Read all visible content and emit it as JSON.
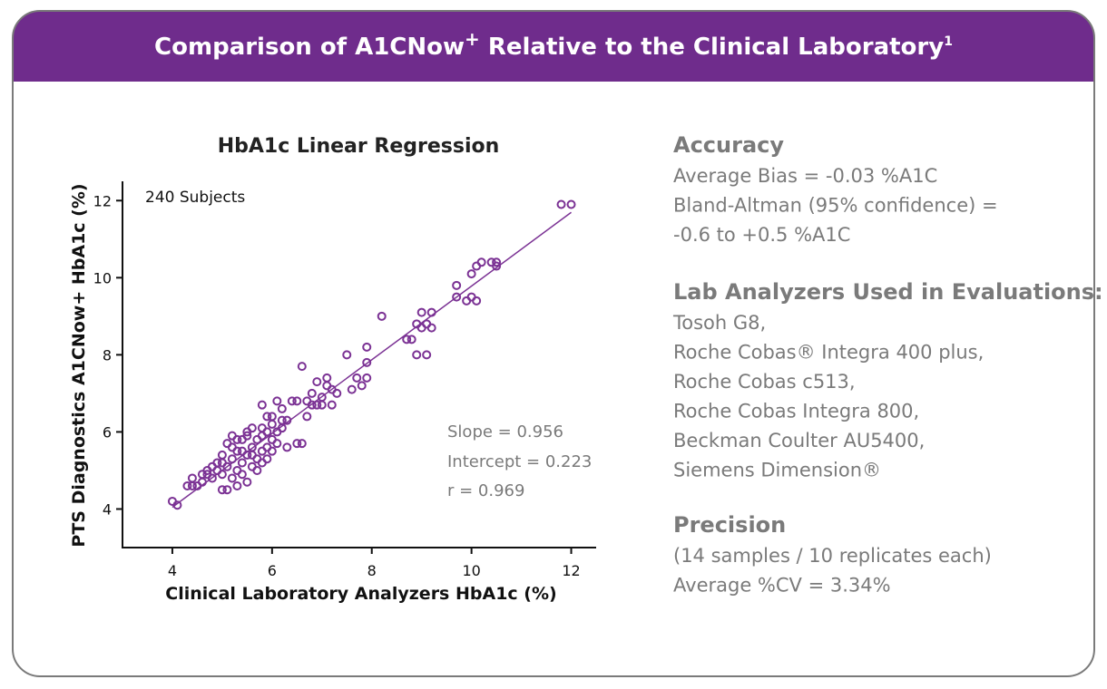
{
  "header": {
    "title": [
      "Comparison of A1CNow",
      "+",
      " Relative to the Clinical Laboratory",
      "1"
    ]
  },
  "chart_data": {
    "type": "scatter",
    "title": "HbA1c Linear Regression",
    "x_label": "Clinical Laboratory Analyzers HbA1c (%)",
    "y_label": "PTS Diagnostics A1CNow+ HbA1c (%)",
    "annotations": [
      "240 Subjects",
      "Slope = 0.956",
      "Intercept = 0.223",
      "r = 0.969"
    ],
    "regression": {
      "slope": 0.956,
      "intercept": 0.223
    },
    "color": "#7b3294",
    "xlim": [
      3,
      12.5
    ],
    "ylim": [
      3,
      12.5
    ],
    "xticks": [
      4,
      6,
      8,
      10,
      12
    ],
    "yticks": [
      4,
      6,
      8,
      10,
      12
    ],
    "grid": false,
    "x": [
      4.0,
      4.1,
      4.3,
      4.4,
      4.4,
      4.5,
      4.6,
      4.7,
      4.7,
      4.8,
      4.8,
      4.9,
      4.9,
      5.0,
      5.0,
      5.0,
      5.1,
      5.1,
      5.1,
      5.2,
      5.2,
      5.2,
      5.3,
      5.3,
      5.3,
      5.4,
      5.4,
      5.4,
      5.5,
      5.5,
      5.5,
      5.6,
      5.6,
      5.6,
      5.7,
      5.7,
      5.7,
      5.8,
      5.8,
      5.8,
      5.9,
      5.9,
      5.9,
      6.0,
      6.0,
      6.0,
      6.1,
      6.1,
      6.1,
      6.2,
      6.2,
      5.8,
      5.9,
      6.3,
      6.3,
      6.4,
      6.5,
      6.6,
      6.5,
      6.6,
      6.7,
      6.7,
      6.8,
      6.8,
      6.9,
      6.9,
      7.0,
      7.0,
      7.1,
      7.1,
      7.2,
      7.2,
      7.3,
      7.5,
      7.6,
      7.7,
      7.8,
      7.9,
      7.9,
      7.9,
      8.2,
      8.7,
      8.8,
      8.9,
      8.9,
      9.0,
      9.0,
      9.1,
      9.1,
      9.2,
      9.2,
      9.7,
      9.7,
      9.9,
      10.0,
      10.0,
      10.1,
      10.1,
      10.2,
      10.4,
      10.5,
      10.5,
      11.8,
      12.0,
      5.0,
      5.2,
      5.4,
      5.6,
      5.8,
      6.0,
      6.2,
      5.5,
      4.6,
      5.3
    ],
    "y": [
      4.2,
      4.1,
      4.6,
      4.8,
      4.6,
      4.6,
      4.7,
      4.9,
      5.0,
      4.8,
      5.1,
      5.0,
      5.2,
      4.5,
      5.4,
      4.9,
      4.5,
      5.7,
      5.1,
      5.3,
      4.8,
      5.6,
      4.6,
      5.0,
      5.5,
      5.8,
      5.2,
      4.9,
      6.0,
      5.4,
      4.7,
      5.6,
      6.1,
      5.1,
      5.8,
      5.3,
      5.0,
      5.9,
      5.5,
      6.1,
      6.0,
      5.6,
      5.3,
      6.2,
      5.8,
      6.4,
      6.0,
      5.7,
      6.8,
      6.3,
      6.1,
      6.7,
      6.4,
      5.6,
      6.3,
      6.8,
      5.7,
      5.7,
      6.8,
      7.7,
      6.8,
      6.4,
      7.0,
      6.7,
      6.7,
      7.3,
      6.9,
      6.7,
      7.4,
      7.2,
      6.7,
      7.1,
      7.0,
      8.0,
      7.1,
      7.4,
      7.2,
      7.8,
      8.2,
      7.4,
      9.0,
      8.4,
      8.4,
      8.8,
      8.0,
      9.1,
      8.7,
      8.0,
      8.8,
      8.7,
      9.1,
      9.8,
      9.5,
      9.4,
      10.1,
      9.5,
      9.4,
      10.3,
      10.4,
      10.4,
      10.3,
      10.4,
      11.9,
      11.9,
      5.2,
      5.9,
      5.5,
      5.4,
      5.2,
      5.5,
      6.6,
      5.9,
      4.9,
      5.8
    ]
  },
  "panel": {
    "accuracy": {
      "heading": "Accuracy",
      "lines": [
        "Average Bias = -0.03 %A1C",
        "Bland-Altman (95% confidence) =",
        "-0.6 to +0.5 %A1C"
      ]
    },
    "analyzers": {
      "heading": "Lab Analyzers Used in Evaluations:",
      "lines": [
        "Tosoh G8,",
        "Roche Cobas® Integra 400 plus,",
        "Roche Cobas c513,",
        "Roche Cobas Integra 800,",
        "Beckman Coulter AU5400,",
        "Siemens Dimension®"
      ]
    },
    "precision": {
      "heading": "Precision",
      "lines": [
        "(14 samples / 10 replicates each)",
        "Average %CV = 3.34%"
      ]
    }
  }
}
